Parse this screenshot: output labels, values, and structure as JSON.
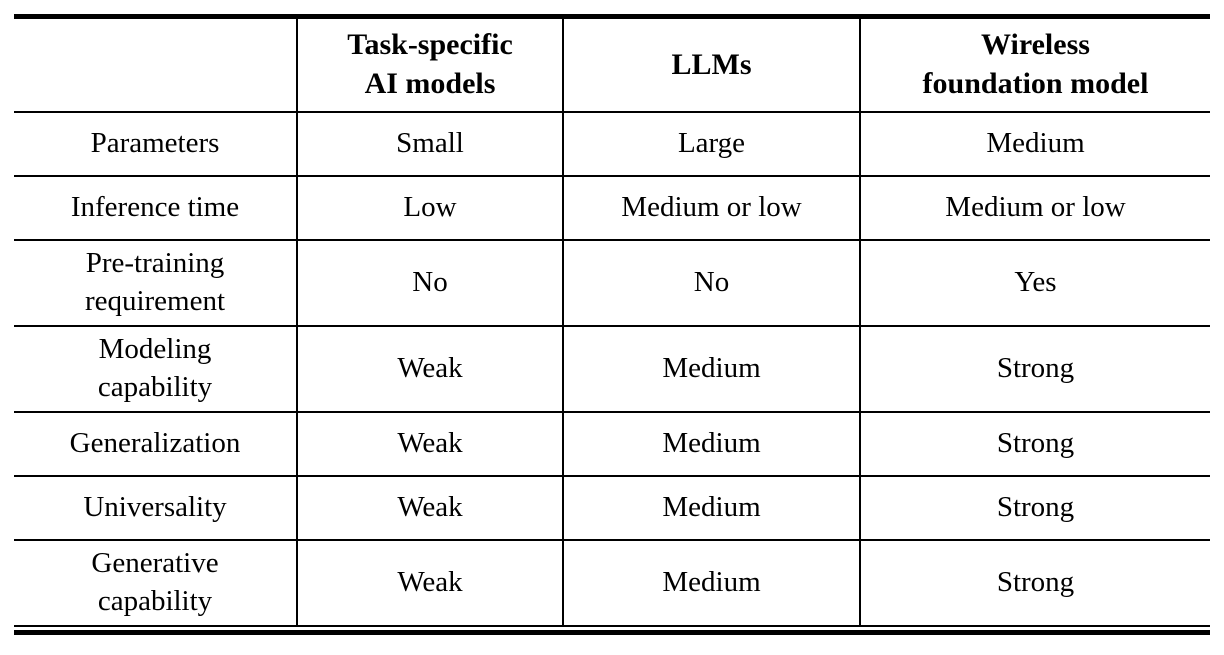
{
  "table": {
    "corner": "",
    "columns": [
      "Task-specific\nAI models",
      "LLMs",
      "Wireless\nfoundation model"
    ],
    "rows": [
      {
        "label": "Parameters",
        "values": [
          "Small",
          "Large",
          "Medium"
        ]
      },
      {
        "label": "Inference time",
        "values": [
          "Low",
          "Medium or low",
          "Medium or low"
        ]
      },
      {
        "label": "Pre-training\nrequirement",
        "values": [
          "No",
          "No",
          "Yes"
        ]
      },
      {
        "label": "Modeling\ncapability",
        "values": [
          "Weak",
          "Medium",
          "Strong"
        ]
      },
      {
        "label": "Generalization",
        "values": [
          "Weak",
          "Medium",
          "Strong"
        ]
      },
      {
        "label": "Universality",
        "values": [
          "Weak",
          "Medium",
          "Strong"
        ]
      },
      {
        "label": "Generative\ncapability",
        "values": [
          "Weak",
          "Medium",
          "Strong"
        ]
      }
    ]
  }
}
